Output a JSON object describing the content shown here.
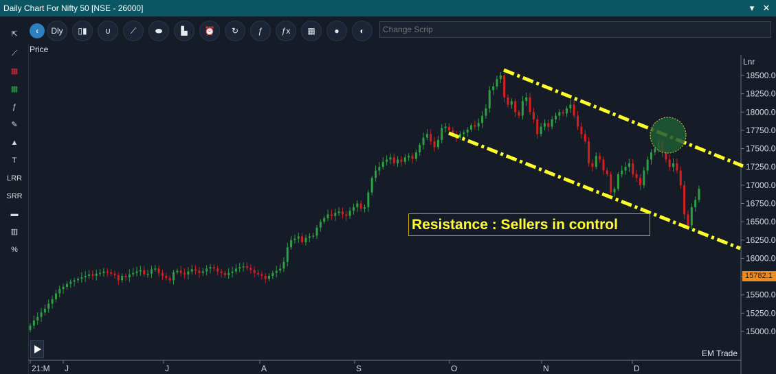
{
  "window": {
    "title": "Daily Chart For Nifty 50 [NSE - 26000]",
    "controls": [
      "▾",
      "✕"
    ]
  },
  "sidebar": {
    "tools": [
      {
        "name": "pointer-icon",
        "label": "⇱"
      },
      {
        "name": "trendline-icon",
        "label": "⟋"
      },
      {
        "name": "red-band-icon",
        "label": "▦"
      },
      {
        "name": "green-band-icon",
        "label": "▦"
      },
      {
        "name": "function-icon",
        "label": "ƒ"
      },
      {
        "name": "brush-icon",
        "label": "✎"
      },
      {
        "name": "shapes-icon",
        "label": "▲"
      },
      {
        "name": "text-icon",
        "label": "T"
      },
      {
        "name": "lrr-tool",
        "label": "LRR"
      },
      {
        "name": "srr-tool",
        "label": "SRR"
      },
      {
        "name": "image-icon",
        "label": "▬"
      },
      {
        "name": "bar-stats-icon",
        "label": "▥"
      },
      {
        "name": "percent-icon",
        "label": "%"
      }
    ]
  },
  "toolbar": {
    "back_label": "‹",
    "period_label": "Dly",
    "buttons": [
      {
        "name": "candle-type-icon",
        "label": "▯▮"
      },
      {
        "name": "magnet-icon",
        "label": "∪"
      },
      {
        "name": "line-chart-icon",
        "label": "⟋"
      },
      {
        "name": "mouse-icon",
        "label": "⬬"
      },
      {
        "name": "indicator-icon",
        "label": "▙"
      },
      {
        "name": "alarm-icon",
        "label": "⏰"
      },
      {
        "name": "refresh-icon",
        "label": "↻"
      },
      {
        "name": "study-icon",
        "label": "ƒ"
      },
      {
        "name": "formula-icon",
        "label": "ƒx"
      },
      {
        "name": "grid-icon",
        "label": "▦"
      },
      {
        "name": "circle-icon",
        "label": "●"
      },
      {
        "name": "theme-icon",
        "label": "◐"
      }
    ],
    "search_placeholder": "Change Scrip"
  },
  "colors": {
    "up": "#2ea043",
    "down": "#d42020",
    "trendline": "#ffff2a",
    "highlight": "#1d5a32",
    "price_tag": "#f08c1e"
  },
  "price_label": "Price",
  "footer_text": "EM Trade",
  "chart_data": {
    "type": "candlestick",
    "title": "Daily Chart For Nifty 50 [NSE - 26000]",
    "ylabel": "Lnr",
    "ylim": [
      14600,
      18750
    ],
    "y_ticks": [
      15000,
      15250,
      15500,
      15750,
      16000,
      16250,
      16500,
      16750,
      17000,
      17250,
      17500,
      17750,
      18000,
      18250,
      18500
    ],
    "x_month_labels": [
      "21:M",
      "J",
      "J",
      "A",
      "S",
      "O",
      "N",
      "D"
    ],
    "last_price_label": "15782.1",
    "annotation": "Resistance : Sellers in control",
    "closes": [
      15080,
      15150,
      15200,
      15260,
      15310,
      15380,
      15440,
      15520,
      15580,
      15610,
      15650,
      15680,
      15700,
      15720,
      15740,
      15760,
      15780,
      15760,
      15790,
      15800,
      15820,
      15810,
      15790,
      15770,
      15700,
      15760,
      15740,
      15780,
      15800,
      15820,
      15840,
      15780,
      15790,
      15850,
      15860,
      15800,
      15760,
      15730,
      15700,
      15810,
      15830,
      15800,
      15780,
      15820,
      15850,
      15830,
      15800,
      15820,
      15860,
      15880,
      15860,
      15820,
      15800,
      15770,
      15800,
      15820,
      15860,
      15880,
      15890,
      15870,
      15840,
      15800,
      15780,
      15760,
      15720,
      15760,
      15800,
      15830,
      15860,
      15950,
      16150,
      16250,
      16270,
      16300,
      16220,
      16280,
      16300,
      16310,
      16420,
      16500,
      16550,
      16600,
      16580,
      16620,
      16640,
      16600,
      16580,
      16650,
      16700,
      16750,
      16680,
      16700,
      16900,
      17100,
      17200,
      17250,
      17320,
      17350,
      17380,
      17300,
      17350,
      17320,
      17380,
      17400,
      17360,
      17450,
      17550,
      17650,
      17700,
      17600,
      17520,
      17620,
      17780,
      17800,
      17750,
      17700,
      17650,
      17700,
      17720,
      17760,
      17820,
      17800,
      17850,
      17950,
      18050,
      18300,
      18350,
      18450,
      18500,
      18200,
      18100,
      18150,
      18000,
      17950,
      18150,
      18200,
      18000,
      17900,
      17700,
      17800,
      17850,
      17800,
      17900,
      17950,
      18000,
      17980,
      18050,
      18100,
      17950,
      17800,
      17700,
      17600,
      17300,
      17250,
      17400,
      17350,
      17200,
      17150,
      16900,
      16950,
      17150,
      17200,
      17250,
      17300,
      17150,
      17100,
      17000,
      17200,
      17350,
      17450,
      17500,
      17600,
      17450,
      17350,
      17250,
      17300,
      17200,
      17000,
      16600,
      16450,
      16700,
      16800,
      16950
    ]
  }
}
